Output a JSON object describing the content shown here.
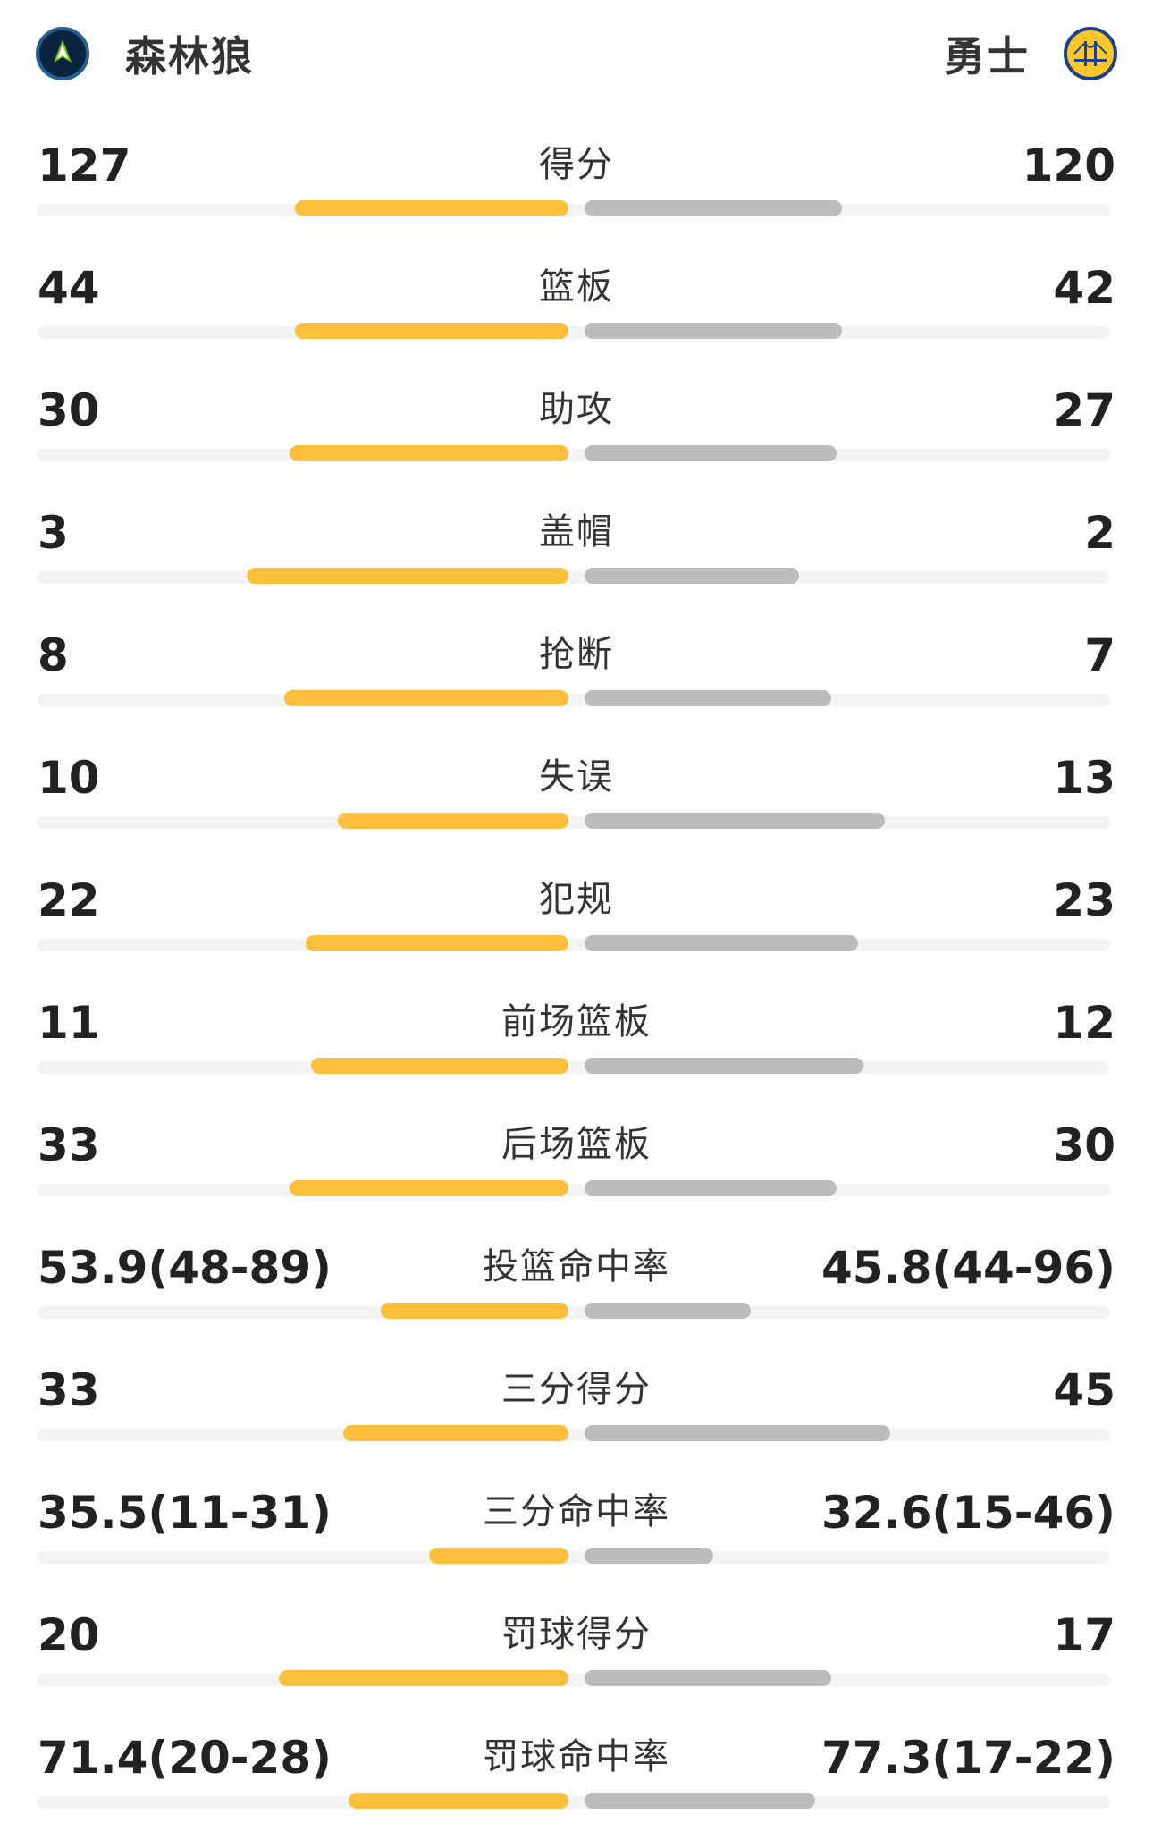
{
  "header": {
    "home_team": {
      "name": "森林狼",
      "logo": "timberwolves-logo-icon",
      "color": "#0c2340"
    },
    "away_team": {
      "name": "勇士",
      "logo": "warriors-logo-icon",
      "color": "#1d428a"
    }
  },
  "colors": {
    "home_bar": "#fbbf3c",
    "away_bar": "#bcbcbc",
    "track": "#f3f3f3"
  },
  "stats": [
    {
      "label": "得分",
      "home": "127",
      "away": "120",
      "home_bar": 0.51,
      "away_bar": 0.48
    },
    {
      "label": "篮板",
      "home": "44",
      "away": "42",
      "home_bar": 0.51,
      "away_bar": 0.48
    },
    {
      "label": "助攻",
      "home": "30",
      "away": "27",
      "home_bar": 0.52,
      "away_bar": 0.47
    },
    {
      "label": "盖帽",
      "home": "3",
      "away": "2",
      "home_bar": 0.6,
      "away_bar": 0.4
    },
    {
      "label": "抢断",
      "home": "8",
      "away": "7",
      "home_bar": 0.53,
      "away_bar": 0.46
    },
    {
      "label": "失误",
      "home": "10",
      "away": "13",
      "home_bar": 0.43,
      "away_bar": 0.56
    },
    {
      "label": "犯规",
      "home": "22",
      "away": "23",
      "home_bar": 0.49,
      "away_bar": 0.51
    },
    {
      "label": "前场篮板",
      "home": "11",
      "away": "12",
      "home_bar": 0.48,
      "away_bar": 0.52
    },
    {
      "label": "后场篮板",
      "home": "33",
      "away": "30",
      "home_bar": 0.52,
      "away_bar": 0.47
    },
    {
      "label": "投篮命中率",
      "home": "53.9(48-89)",
      "away": "45.8(44-96)",
      "home_bar": 0.35,
      "away_bar": 0.31
    },
    {
      "label": "三分得分",
      "home": "33",
      "away": "45",
      "home_bar": 0.42,
      "away_bar": 0.57
    },
    {
      "label": "三分命中率",
      "home": "35.5(11-31)",
      "away": "32.6(15-46)",
      "home_bar": 0.26,
      "away_bar": 0.24
    },
    {
      "label": "罚球得分",
      "home": "20",
      "away": "17",
      "home_bar": 0.54,
      "away_bar": 0.46
    },
    {
      "label": "罚球命中率",
      "home": "71.4(20-28)",
      "away": "77.3(17-22)",
      "home_bar": 0.41,
      "away_bar": 0.43
    }
  ]
}
